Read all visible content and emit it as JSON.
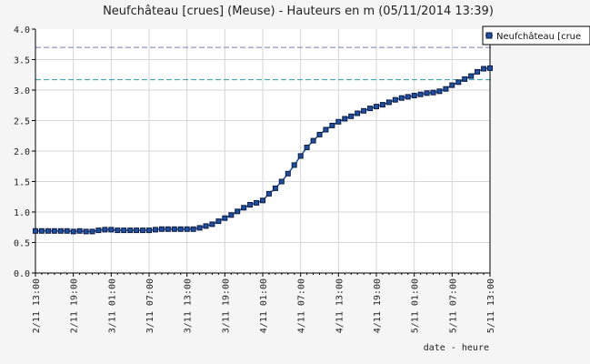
{
  "chart_data": {
    "type": "line",
    "title": "Neufchâteau [crues] (Meuse) - Hauteurs en m (05/11/2014 13:39)",
    "xlabel": "date - heure",
    "ylabel": "",
    "ylim": [
      0.0,
      4.0
    ],
    "yticks": [
      "0.0",
      "0.5",
      "1.0",
      "1.5",
      "2.0",
      "2.5",
      "3.0",
      "3.5",
      "4.0"
    ],
    "xticks": [
      "2/11 13:00",
      "2/11 19:00",
      "3/11 01:00",
      "3/11 07:00",
      "3/11 13:00",
      "3/11 19:00",
      "4/11 01:00",
      "4/11 07:00",
      "4/11 13:00",
      "4/11 19:00",
      "5/11 01:00",
      "5/11 07:00",
      "5/11 13:00"
    ],
    "x_hours_from": "2/11 13:00",
    "grid": true,
    "legend": {
      "position": "top-right",
      "label": "Neufchâteau [crue"
    },
    "threshold_lines": [
      {
        "value": 3.7,
        "color": "#7b7bb8",
        "style": "dashed"
      },
      {
        "value": 3.17,
        "color": "#2a9ab0",
        "style": "dashed"
      }
    ],
    "series": [
      {
        "name": "Neufchâteau [crue",
        "color": "#1f4fa0",
        "x_hours": [
          0,
          1,
          2,
          3,
          4,
          5,
          6,
          7,
          8,
          9,
          10,
          11,
          12,
          13,
          14,
          15,
          16,
          17,
          18,
          19,
          20,
          21,
          22,
          23,
          24,
          25,
          26,
          27,
          28,
          29,
          30,
          31,
          32,
          33,
          34,
          35,
          36,
          37,
          38,
          39,
          40,
          41,
          42,
          43,
          44,
          45,
          46,
          47,
          48,
          49,
          50,
          51,
          52,
          53,
          54,
          55,
          56,
          57,
          58,
          59,
          60,
          61,
          62,
          63,
          64,
          65,
          66,
          67,
          68,
          69,
          70,
          71,
          72
        ],
        "values": [
          0.69,
          0.69,
          0.69,
          0.69,
          0.69,
          0.69,
          0.68,
          0.69,
          0.68,
          0.68,
          0.7,
          0.71,
          0.71,
          0.7,
          0.7,
          0.7,
          0.7,
          0.7,
          0.7,
          0.71,
          0.72,
          0.72,
          0.72,
          0.72,
          0.72,
          0.72,
          0.74,
          0.77,
          0.8,
          0.85,
          0.9,
          0.95,
          1.01,
          1.07,
          1.12,
          1.15,
          1.19,
          1.3,
          1.39,
          1.5,
          1.63,
          1.77,
          1.92,
          2.06,
          2.17,
          2.27,
          2.35,
          2.42,
          2.48,
          2.53,
          2.57,
          2.62,
          2.66,
          2.7,
          2.73,
          2.76,
          2.8,
          2.84,
          2.87,
          2.89,
          2.91,
          2.93,
          2.95,
          2.96,
          2.98,
          3.02,
          3.08,
          3.13,
          3.18,
          3.23,
          3.3,
          3.35,
          3.36
        ]
      }
    ]
  },
  "colors": {
    "plot_background": "#ffffff",
    "grid": "#d6d6d6",
    "axis": "#000000",
    "marker_fill": "#1f4fa0",
    "marker_stroke": "#0a1a40",
    "line": "#1f4fa0"
  }
}
